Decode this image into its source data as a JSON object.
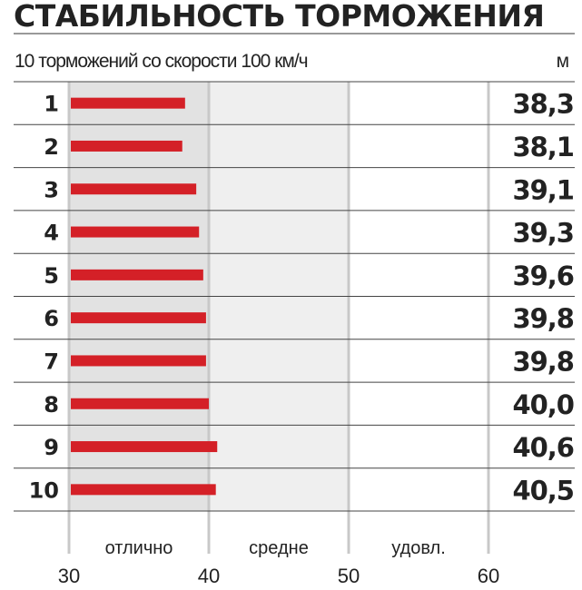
{
  "chart_data": {
    "type": "bar",
    "orientation": "horizontal",
    "title": "СТАБИЛЬНОСТЬ ТОРМОЖЕНИЯ",
    "subtitle": "10 торможений со скорости 100 км/ч",
    "unit": "м",
    "categories": [
      "1",
      "2",
      "3",
      "4",
      "5",
      "6",
      "7",
      "8",
      "9",
      "10"
    ],
    "values": [
      38.3,
      38.1,
      39.1,
      39.3,
      39.6,
      39.8,
      39.8,
      40.0,
      40.6,
      40.5
    ],
    "value_labels": [
      "38,3",
      "38,1",
      "39,1",
      "39,3",
      "39,6",
      "39,8",
      "39,8",
      "40,0",
      "40,6",
      "40,5"
    ],
    "xlim": [
      30,
      60
    ],
    "x_ticks": [
      "30",
      "40",
      "50",
      "60"
    ],
    "zones": [
      {
        "label": "отлично",
        "from": 30,
        "to": 40,
        "color": "#e2e2e2"
      },
      {
        "label": "средне",
        "from": 40,
        "to": 50,
        "color": "#efefef"
      },
      {
        "label": "удовл.",
        "from": 50,
        "to": 60,
        "color": "#ffffff"
      }
    ],
    "bar_color": "#d42027",
    "grid": true
  }
}
